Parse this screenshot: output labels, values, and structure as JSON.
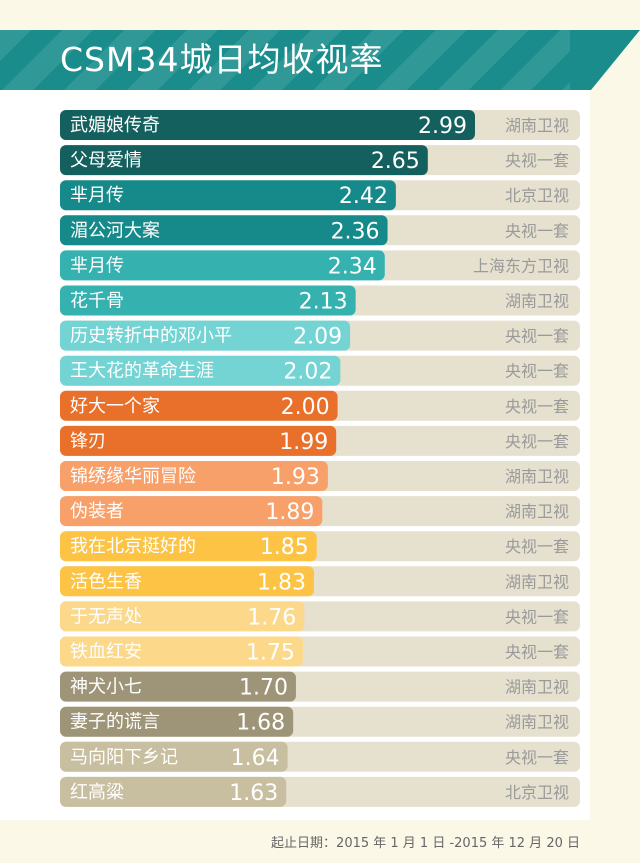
{
  "title": "CSM34城日均收视率",
  "footer": "起止日期：2015 年 1 月 1 日 -2015 年 12 月 20 日",
  "colors": {
    "banner": "#1a8c8c",
    "track": "#e6e1cf",
    "channel_text": "#9a9a9a"
  },
  "chart_data": {
    "type": "bar",
    "orientation": "horizontal",
    "title": "CSM34城日均收视率",
    "categories": [
      "武媚娘传奇",
      "父母爱情",
      "芈月传",
      "湄公河大案",
      "芈月传",
      "花千骨",
      "历史转折中的邓小平",
      "王大花的革命生涯",
      "好大一个家",
      "锋刃",
      "锦绣缘华丽冒险",
      "伪装者",
      "我在北京挺好的",
      "活色生香",
      "于无声处",
      "铁血红安",
      "神犬小七",
      "妻子的谎言",
      "马向阳下乡记",
      "红高粱"
    ],
    "values": [
      2.99,
      2.65,
      2.42,
      2.36,
      2.34,
      2.13,
      2.09,
      2.02,
      2.0,
      1.99,
      1.93,
      1.89,
      1.85,
      1.83,
      1.76,
      1.75,
      1.7,
      1.68,
      1.64,
      1.63
    ],
    "value_labels": [
      "2.99",
      "2.65",
      "2.42",
      "2.36",
      "2.34",
      "2.13",
      "2.09",
      "2.02",
      "2.00",
      "1.99",
      "1.93",
      "1.89",
      "1.85",
      "1.83",
      "1.76",
      "1.75",
      "1.70",
      "1.68",
      "1.64",
      "1.63"
    ],
    "channels": [
      "湖南卫视",
      "央视一套",
      "北京卫视",
      "央视一套",
      "上海东方卫视",
      "湖南卫视",
      "央视一套",
      "央视一套",
      "央视一套",
      "央视一套",
      "湖南卫视",
      "湖南卫视",
      "央视一套",
      "湖南卫视",
      "央视一套",
      "央视一套",
      "湖南卫视",
      "湖南卫视",
      "央视一套",
      "北京卫视"
    ],
    "colors": [
      "#13605e",
      "#13605e",
      "#168a8a",
      "#168a8a",
      "#35b1b0",
      "#35b1b0",
      "#74d3d3",
      "#74d3d3",
      "#e8702b",
      "#e8702b",
      "#f7a06a",
      "#f7a06a",
      "#fcc345",
      "#fcc345",
      "#fcd88a",
      "#fcd88a",
      "#9e9477",
      "#9e9477",
      "#c8bea0",
      "#c8bea0"
    ],
    "xlim": [
      0,
      3.1
    ]
  }
}
